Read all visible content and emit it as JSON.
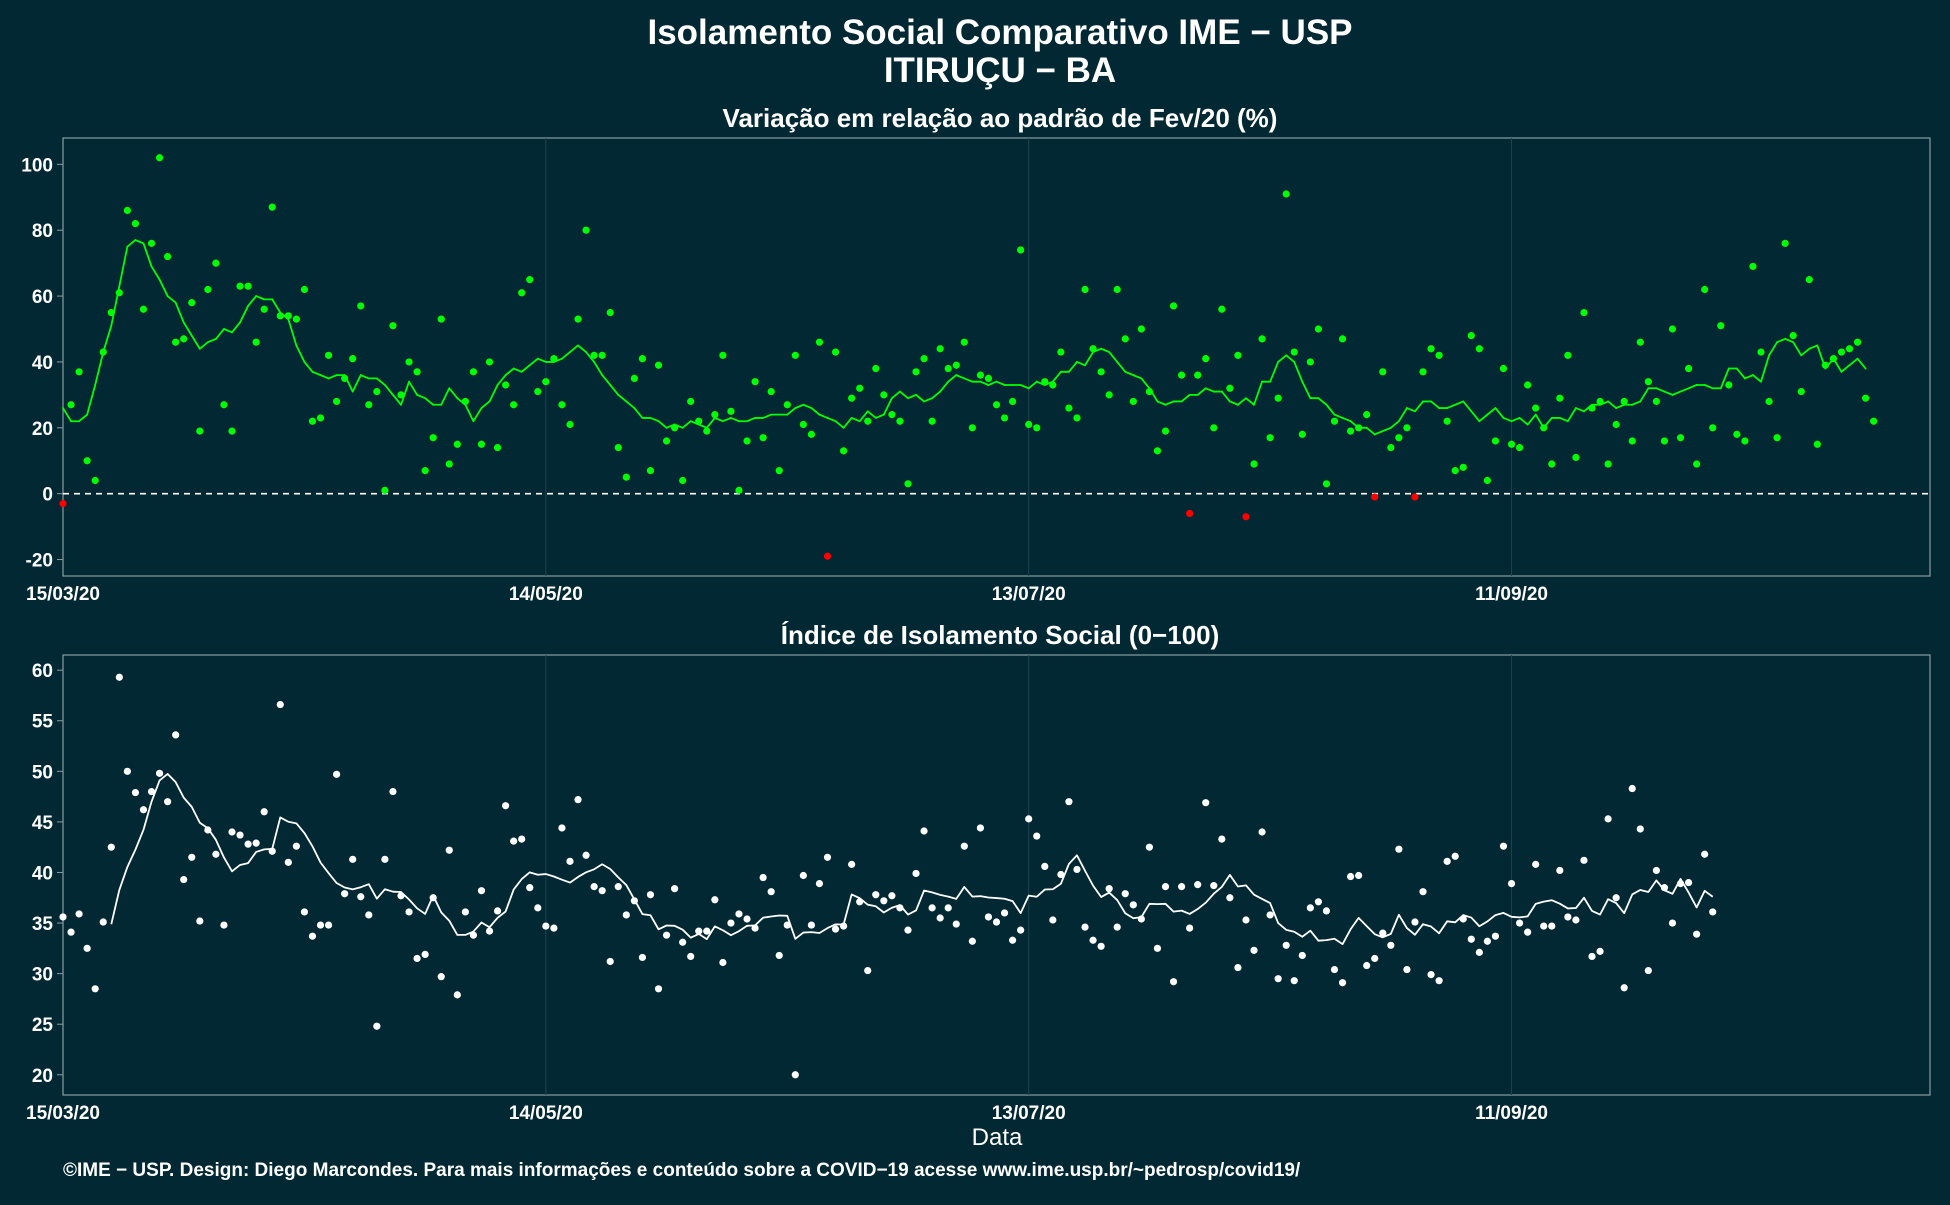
{
  "title_line1": "Isolamento Social Comparativo IME − USP",
  "title_line2": "ITIRUÇU − BA",
  "xlabel": "Data",
  "caption": "©IME − USP. Design: Diego Marcondes. Para mais informações e conteúdo sobre a COVID−19 acesse www.ime.usp.br/~pedrosp/covid19/",
  "colors": {
    "background": "#022833",
    "panel_border": "#8a9ca2",
    "gridline": "#1e4450",
    "positive": "#00ff00",
    "negative": "#ff0000",
    "index": "#ffffff",
    "zero_line": "#ffffff"
  },
  "chart_data": [
    {
      "type": "scatter",
      "title": "Variação em relação ao padrão de Fev/20 (%)",
      "x_start": "15/03/20",
      "x_tick_labels": [
        "15/03/20",
        "14/05/20",
        "13/07/20",
        "11/09/20"
      ],
      "xlim": [
        "15/03/20",
        "02/11/20"
      ],
      "ylim": [
        -25,
        108
      ],
      "y_ticks": [
        -20,
        0,
        20,
        40,
        60,
        80,
        100
      ],
      "reference_line": {
        "y": 0,
        "style": "dashed"
      },
      "series": [
        {
          "values": [
            -3,
            27,
            37,
            10,
            4,
            43,
            55,
            61,
            86,
            82,
            56,
            76,
            102,
            72,
            46,
            47,
            58,
            19,
            62,
            70,
            27,
            19,
            63,
            63,
            46,
            56,
            87,
            54,
            54,
            53,
            62,
            22,
            23,
            42,
            28,
            35,
            41,
            57,
            27,
            31,
            1,
            51,
            30,
            40,
            37,
            7,
            17,
            53,
            9,
            15,
            28,
            37,
            15,
            40,
            14,
            33,
            27,
            61,
            65,
            31,
            34,
            41,
            27,
            21,
            53,
            80,
            42,
            42,
            55,
            14,
            5,
            35,
            41,
            7,
            39,
            16,
            20,
            4,
            28,
            22,
            19,
            24,
            42,
            25,
            1,
            16,
            34,
            17,
            31,
            7,
            27,
            42,
            21,
            18,
            46,
            -19,
            43,
            13,
            29,
            32,
            22,
            38,
            30,
            24,
            22,
            3,
            37,
            41,
            22,
            44,
            38,
            39,
            46,
            20,
            36,
            35,
            27,
            23,
            28,
            74,
            21,
            20,
            34,
            33,
            43,
            26,
            23,
            62,
            44,
            37,
            30,
            62,
            47,
            28,
            50,
            31,
            13,
            19,
            57,
            36,
            -6,
            36,
            41,
            20,
            56,
            32,
            42,
            -7,
            9,
            47,
            17,
            29,
            91,
            43,
            18,
            40,
            50,
            3,
            22,
            47,
            19,
            20,
            24,
            -1,
            37,
            14,
            17,
            20,
            -1,
            37,
            44,
            42,
            22,
            7,
            8,
            48,
            44,
            4,
            16,
            38,
            15,
            14,
            33,
            26,
            20,
            9,
            29,
            42,
            11,
            55,
            26,
            28,
            9,
            21,
            28,
            16,
            46,
            34,
            28,
            16,
            50,
            17,
            38,
            9,
            62,
            20,
            51,
            33,
            18,
            16,
            69,
            43,
            28,
            17,
            76,
            48,
            31,
            65,
            15,
            39,
            41,
            43,
            44,
            46,
            29,
            22
          ],
          "moving_average": [
            26,
            22,
            22,
            24,
            33,
            43,
            51,
            63,
            75,
            77,
            76,
            69,
            65,
            60,
            58,
            52,
            48,
            44,
            46,
            47,
            50,
            49,
            52,
            57,
            60,
            59,
            59,
            55,
            53,
            45,
            40,
            37,
            36,
            35,
            36,
            36,
            31,
            36,
            35,
            35,
            33,
            30,
            27,
            34,
            30,
            29,
            27,
            27,
            32,
            29,
            27,
            22,
            26,
            28,
            33,
            36,
            38,
            37,
            39,
            41,
            40,
            40,
            41,
            43,
            45,
            43,
            40,
            36,
            33,
            30,
            28,
            26,
            23,
            23,
            22,
            20,
            21,
            20,
            22,
            21,
            20,
            23,
            22,
            23,
            22,
            22,
            23,
            23,
            24,
            24,
            24,
            26,
            27,
            26,
            24,
            23,
            22,
            20,
            23,
            22,
            25,
            23,
            24,
            29,
            31,
            29,
            30,
            28,
            29,
            31,
            34,
            36,
            35,
            34,
            34,
            33,
            34,
            33,
            33,
            33,
            32,
            34,
            33,
            34,
            37,
            37,
            40,
            39,
            43,
            44,
            43,
            40,
            37,
            36,
            35,
            32,
            28,
            27,
            28,
            28,
            30,
            30,
            32,
            31,
            31,
            28,
            27,
            29,
            27,
            34,
            34,
            40,
            42,
            40,
            34,
            29,
            29,
            27,
            24,
            23,
            22,
            20,
            20,
            18,
            19,
            20,
            22,
            26,
            25,
            28,
            28,
            26,
            26,
            27,
            28,
            25,
            22,
            24,
            26,
            23,
            22,
            23,
            21,
            24,
            20,
            23,
            23,
            22,
            26,
            25,
            27,
            27,
            28,
            26,
            27,
            27,
            28,
            32,
            32,
            31,
            30,
            31,
            32,
            33,
            33,
            32,
            32,
            38,
            38,
            35,
            36,
            34,
            42,
            46,
            47,
            46,
            42,
            44,
            45,
            38,
            41,
            37,
            39,
            41,
            38
          ]
        }
      ]
    },
    {
      "type": "scatter",
      "title": "Índice de Isolamento Social (0−100)",
      "x_start": "15/03/20",
      "x_tick_labels": [
        "15/03/20",
        "14/05/20",
        "13/07/20",
        "11/09/20"
      ],
      "xlim": [
        "15/03/20",
        "02/11/20"
      ],
      "ylim": [
        18,
        61.5
      ],
      "y_ticks": [
        20,
        25,
        30,
        35,
        40,
        45,
        50,
        55,
        60
      ],
      "series": [
        {
          "values": [
            35.6,
            34.1,
            35.9,
            32.5,
            28.5,
            35.1,
            42.5,
            59.3,
            50,
            47.9,
            46.2,
            48,
            49.8,
            47,
            53.6,
            39.3,
            41.5,
            35.2,
            44.2,
            41.8,
            34.8,
            44,
            43.7,
            42.8,
            42.9,
            46,
            42.1,
            56.6,
            41,
            42.6,
            36.1,
            33.7,
            34.8,
            34.8,
            49.7,
            37.9,
            41.3,
            37.6,
            35.8,
            24.8,
            41.3,
            48,
            37.7,
            36.1,
            31.5,
            31.9,
            37.5,
            29.7,
            42.2,
            27.9,
            36.1,
            33.8,
            38.2,
            34.2,
            36.2,
            46.6,
            43.1,
            43.3,
            38.5,
            36.5,
            34.7,
            34.5,
            44.4,
            41.1,
            47.2,
            41.7,
            38.6,
            38.2,
            31.2,
            38.6,
            35.8,
            37.2,
            31.6,
            37.8,
            28.5,
            33.8,
            38.4,
            33.1,
            31.7,
            34.2,
            34.2,
            37.3,
            31.1,
            35,
            35.9,
            35.4,
            34.5,
            39.5,
            38.1,
            31.8,
            34.8,
            20,
            39.7,
            34.8,
            38.9,
            41.5,
            34.4,
            34.7,
            40.8,
            37.1,
            30.3,
            37.8,
            37.2,
            37.7,
            36.5,
            34.3,
            39.9,
            44.1,
            36.5,
            35.5,
            36.5,
            34.9,
            42.6,
            33.2,
            44.4,
            35.6,
            35.1,
            36,
            33.3,
            34.3,
            45.3,
            43.6,
            40.6,
            35.3,
            39.8,
            47,
            40.3,
            34.6,
            33.3,
            32.7,
            38.4,
            34.6,
            37.9,
            36.8,
            35.4,
            42.5,
            32.5,
            38.6,
            29.2,
            38.6,
            34.5,
            38.8,
            46.9,
            38.7,
            43.3,
            37.5,
            30.6,
            35.3,
            32.3,
            44,
            35.8,
            29.5,
            32.8,
            29.3,
            31.8,
            36.5,
            37.1,
            36.2,
            30.4,
            29.1,
            39.6,
            39.7,
            30.8,
            31.5,
            34,
            32.8,
            42.3,
            30.4,
            35.1,
            38.1,
            29.9,
            29.3,
            41.1,
            41.6,
            35.4,
            33.4,
            32.1,
            33.2,
            33.7,
            42.6,
            38.9,
            35,
            34.1,
            40.8,
            34.7,
            34.7,
            40.2,
            35.6,
            35.3,
            41.2,
            31.7,
            32.2,
            45.3,
            37.5,
            28.6,
            48.3,
            44.3,
            30.3,
            40.2,
            38.5,
            35,
            38.9,
            39,
            33.9,
            41.8,
            36.1
          ]
        }
      ]
    }
  ]
}
